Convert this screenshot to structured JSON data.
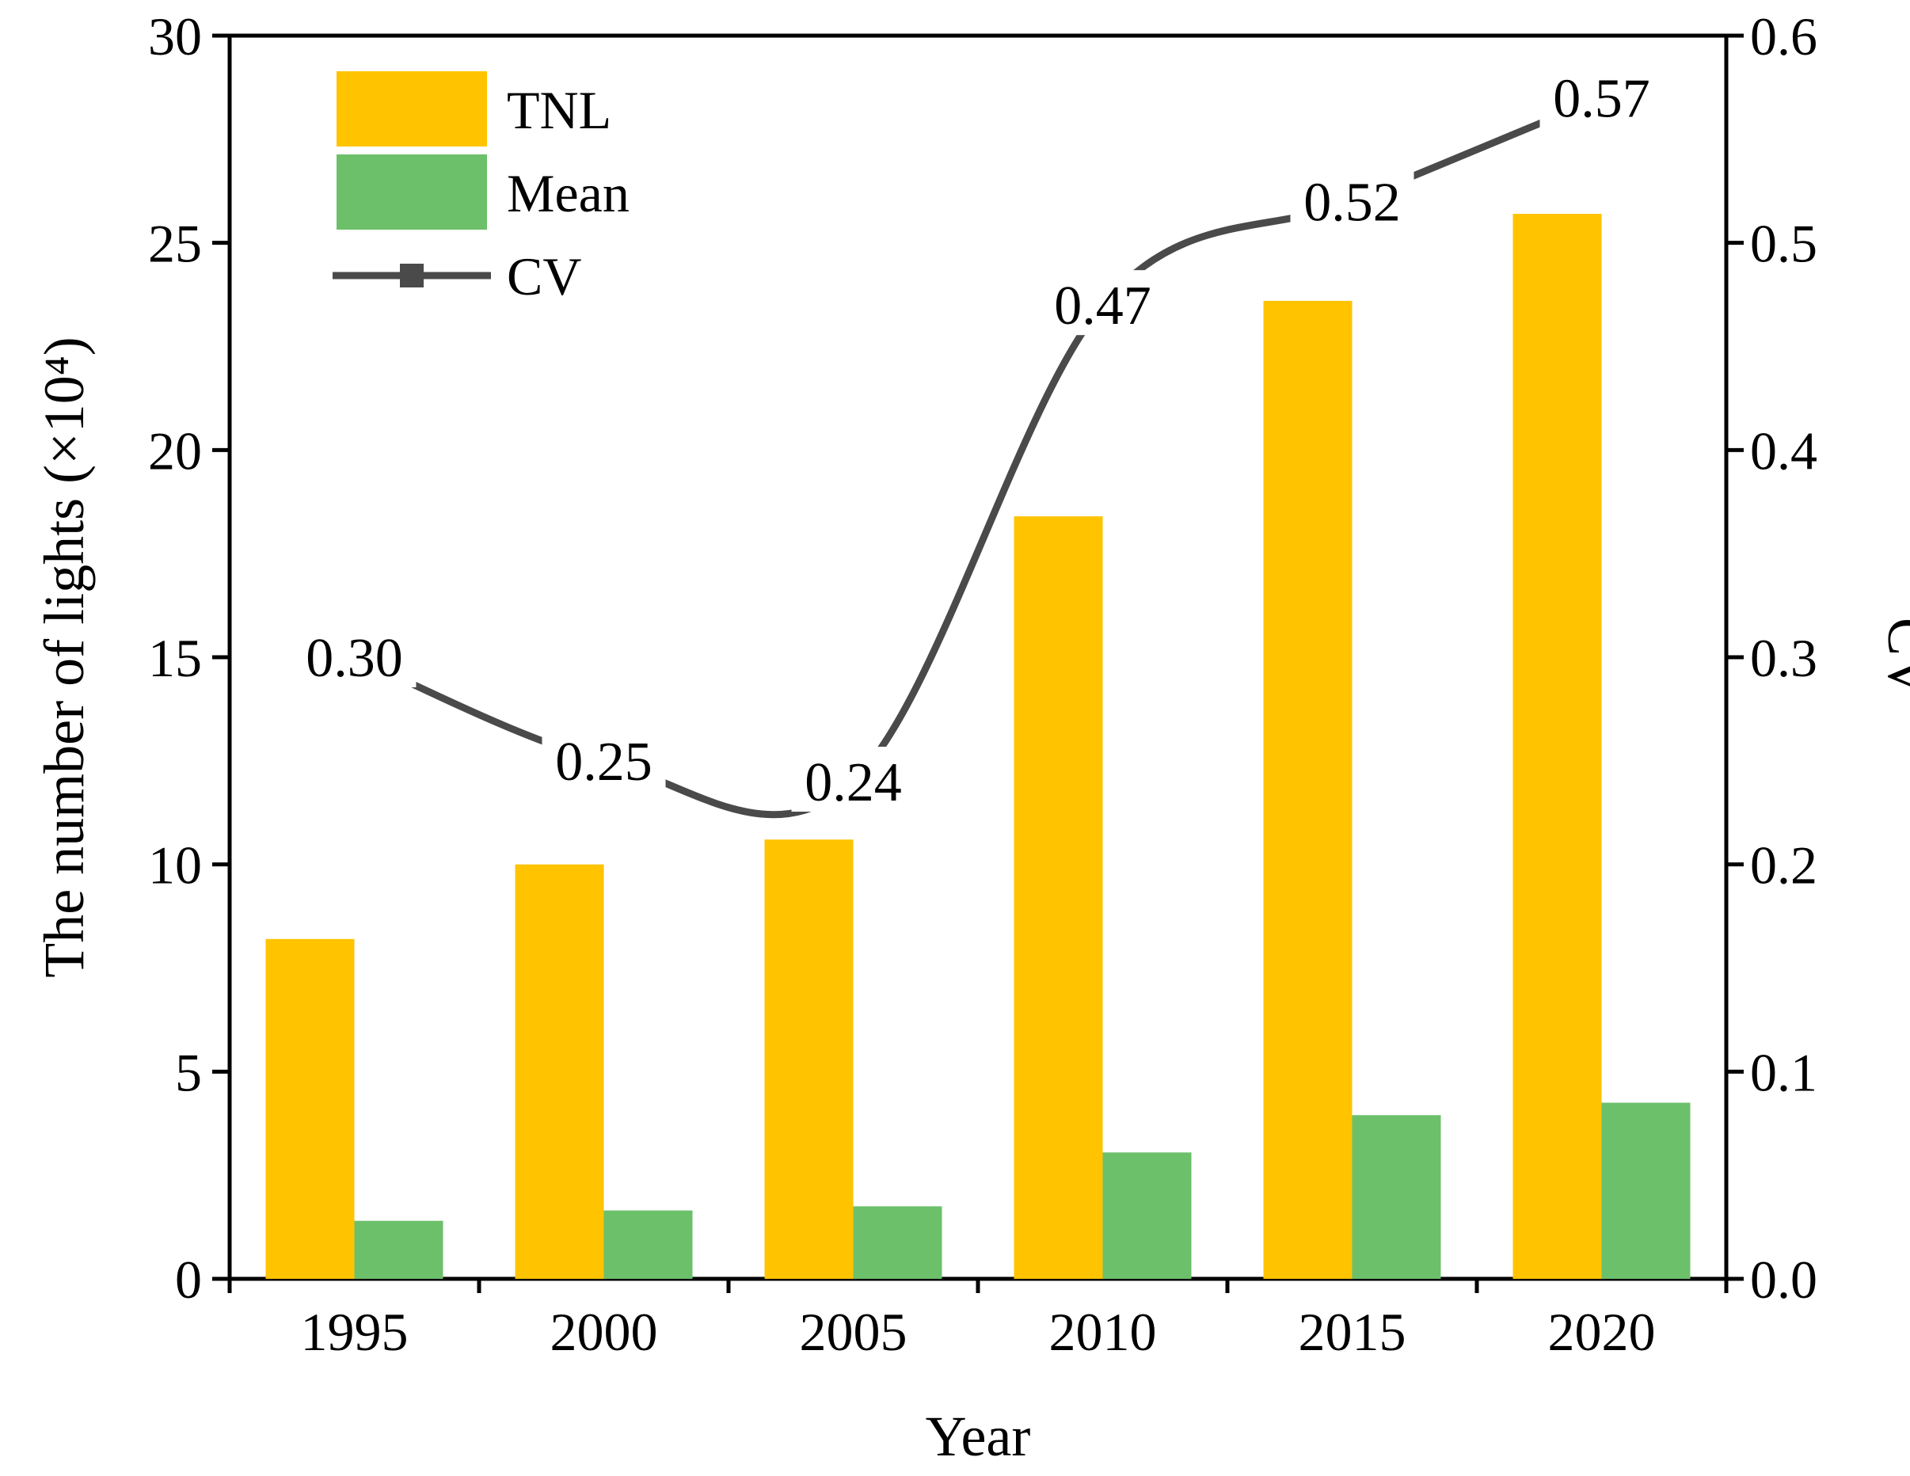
{
  "chart_data": {
    "type": "bar",
    "categories": [
      "1995",
      "2000",
      "2005",
      "2010",
      "2015",
      "2020"
    ],
    "series": [
      {
        "name": "TNL",
        "axis": "left",
        "color": "#FFC300",
        "values": [
          8.2,
          10.0,
          10.6,
          18.4,
          23.6,
          25.7
        ]
      },
      {
        "name": "Mean",
        "axis": "left",
        "color": "#6CC06A",
        "values": [
          1.4,
          1.65,
          1.75,
          3.05,
          3.95,
          4.25
        ]
      }
    ],
    "line_series": {
      "name": "CV",
      "axis": "right",
      "color": "#4A4A4A",
      "values": [
        0.3,
        0.25,
        0.24,
        0.47,
        0.52,
        0.57
      ],
      "labels": [
        "0.30",
        "0.25",
        "0.24",
        "0.47",
        "0.52",
        "0.57"
      ]
    },
    "xlabel": "Year",
    "ylabel": "The number of lights (×10⁴)",
    "ylabel_right": "CV",
    "ylim": [
      0,
      30
    ],
    "ylim_right": [
      0,
      0.6
    ],
    "yticks": [
      "0",
      "5",
      "10",
      "15",
      "20",
      "25",
      "30"
    ],
    "yticks_right": [
      "0.0",
      "0.1",
      "0.2",
      "0.3",
      "0.4",
      "0.5",
      "0.6"
    ],
    "legend": {
      "placement": "top-left",
      "entries": [
        "TNL",
        "Mean",
        "CV"
      ]
    },
    "grid": false
  }
}
